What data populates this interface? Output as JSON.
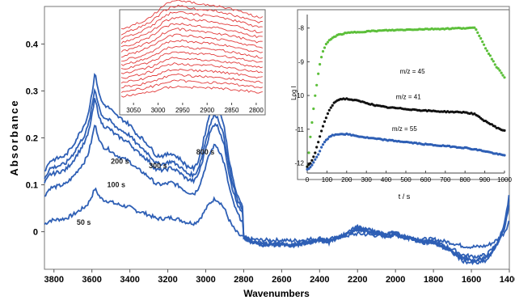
{
  "chart_data": [
    {
      "type": "line",
      "xlabel": "Wavenumbers",
      "ylabel": "Absorbance",
      "xlim": [
        3850,
        1400
      ],
      "ylim": [
        -0.08,
        0.48
      ],
      "x_reversed": true,
      "x_ticks": [
        "3800",
        "3600",
        "3400",
        "3200",
        "3000",
        "2800",
        "2600",
        "2400",
        "2200",
        "2000",
        "1800",
        "1600",
        "1400"
      ],
      "x_tick_values": [
        3800,
        3600,
        3400,
        3200,
        3000,
        2800,
        2600,
        2400,
        2200,
        2000,
        1800,
        1600,
        1400
      ],
      "y_ticks": [
        "0",
        "0.1",
        "0.2",
        "0.3",
        "0.4"
      ],
      "y_tick_values": [
        0,
        0.1,
        0.2,
        0.3,
        0.4
      ],
      "color": "#2e5fb5",
      "base_x": [
        3850,
        3820,
        3780,
        3740,
        3700,
        3670,
        3640,
        3620,
        3600,
        3585,
        3570,
        3555,
        3540,
        3520,
        3500,
        3480,
        3460,
        3440,
        3420,
        3400,
        3380,
        3360,
        3340,
        3300,
        3260,
        3220,
        3180,
        3140,
        3100,
        3060,
        3040,
        3020,
        3000,
        2980,
        2960,
        2950,
        2940,
        2930,
        2920,
        2900,
        2880,
        2860,
        2840,
        2820,
        2800,
        2780,
        2760,
        2740,
        2700,
        2650,
        2600,
        2550,
        2500,
        2450,
        2400,
        2350,
        2300,
        2250,
        2200,
        2150,
        2100,
        2050,
        2000,
        1950,
        1900,
        1850,
        1800,
        1750,
        1700,
        1650,
        1600,
        1560,
        1520,
        1490,
        1460,
        1430,
        1410,
        1400
      ],
      "base_y": [
        0.04,
        0.06,
        0.065,
        0.07,
        0.09,
        0.11,
        0.13,
        0.15,
        0.19,
        0.23,
        0.205,
        0.18,
        0.17,
        0.165,
        0.16,
        0.15,
        0.145,
        0.14,
        0.135,
        0.13,
        0.12,
        0.11,
        0.105,
        0.09,
        0.07,
        0.07,
        0.075,
        0.065,
        0.05,
        0.045,
        0.06,
        0.085,
        0.12,
        0.15,
        0.17,
        0.175,
        0.17,
        0.16,
        0.15,
        0.12,
        0.07,
        0.03,
        0.0,
        -0.02,
        -0.03,
        -0.035,
        -0.04,
        -0.042,
        -0.045,
        -0.045,
        -0.045,
        -0.048,
        -0.045,
        -0.04,
        -0.035,
        -0.04,
        -0.03,
        -0.02,
        -0.01,
        -0.015,
        -0.02,
        -0.025,
        -0.02,
        -0.03,
        -0.035,
        -0.04,
        -0.04,
        -0.05,
        -0.06,
        -0.075,
        -0.08,
        -0.08,
        -0.075,
        -0.06,
        -0.04,
        -0.01,
        0.03,
        0.06
      ],
      "series": [
        {
          "label": "50 s",
          "offset": 0.0,
          "scale": 0.4
        },
        {
          "label": "100 s",
          "offset": 0.045,
          "scale": 0.8
        },
        {
          "label": "200 s",
          "offset": 0.065,
          "scale": 0.95
        },
        {
          "label": "300 s",
          "offset": 0.075,
          "scale": 1.0
        },
        {
          "label": "800 s",
          "offset": 0.085,
          "scale": 1.1
        }
      ]
    },
    {
      "type": "line",
      "title": "",
      "x_ticks": [
        "3050",
        "3000",
        "2950",
        "2900",
        "2850",
        "2800"
      ],
      "x_tick_values": [
        3050,
        3000,
        2950,
        2900,
        2850,
        2800
      ],
      "xlim": [
        3075,
        2785
      ],
      "x_reversed": true,
      "color": "#e23b3b",
      "n_curves": 16,
      "shape_x": [
        3075,
        3050,
        3030,
        3010,
        2990,
        2975,
        2960,
        2950,
        2940,
        2925,
        2910,
        2890,
        2870,
        2850,
        2830,
        2810,
        2800,
        2785
      ],
      "shape_y": [
        0.0,
        0.15,
        0.3,
        0.5,
        0.8,
        0.95,
        1.0,
        0.98,
        0.95,
        0.9,
        0.88,
        0.85,
        0.78,
        0.7,
        0.6,
        0.5,
        0.45,
        0.4
      ]
    },
    {
      "type": "scatter",
      "xlabel": "t / s",
      "ylabel": "Log I",
      "xlim": [
        0,
        1000
      ],
      "ylim": [
        -12.3,
        -7.6
      ],
      "x_ticks": [
        "0",
        "100",
        "200",
        "300",
        "400",
        "500",
        "600",
        "700",
        "800",
        "900",
        "1000"
      ],
      "x_tick_values": [
        0,
        100,
        200,
        300,
        400,
        500,
        600,
        700,
        800,
        900,
        1000
      ],
      "y_ticks": [
        "-8",
        "-9",
        "-10",
        "-11",
        "-12"
      ],
      "y_tick_values": [
        -8,
        -9,
        -10,
        -11,
        -12
      ],
      "series": [
        {
          "name": "m/z = 45",
          "color": "#5cbf3a",
          "x": [
            0,
            10,
            20,
            30,
            40,
            50,
            60,
            70,
            80,
            90,
            100,
            120,
            140,
            160,
            180,
            200,
            250,
            300,
            400,
            500,
            600,
            700,
            800,
            850,
            860,
            880,
            900,
            930,
            960,
            1000
          ],
          "y": [
            -12.1,
            -11.6,
            -11.0,
            -10.5,
            -10.0,
            -9.6,
            -9.2,
            -8.9,
            -8.7,
            -8.55,
            -8.45,
            -8.32,
            -8.25,
            -8.2,
            -8.17,
            -8.15,
            -8.12,
            -8.1,
            -8.07,
            -8.05,
            -8.03,
            -8.02,
            -8.0,
            -8.0,
            -8.1,
            -8.3,
            -8.55,
            -8.85,
            -9.15,
            -9.45
          ]
        },
        {
          "name": "m/z = 41",
          "color": "#111111",
          "x": [
            0,
            20,
            40,
            60,
            80,
            100,
            120,
            140,
            160,
            180,
            200,
            250,
            300,
            350,
            400,
            500,
            600,
            700,
            800,
            850,
            860,
            880,
            900,
            930,
            960,
            1000
          ],
          "y": [
            -12.1,
            -12.0,
            -11.7,
            -11.3,
            -10.9,
            -10.6,
            -10.35,
            -10.2,
            -10.12,
            -10.1,
            -10.1,
            -10.15,
            -10.22,
            -10.3,
            -10.35,
            -10.4,
            -10.45,
            -10.48,
            -10.5,
            -10.55,
            -10.6,
            -10.68,
            -10.75,
            -10.85,
            -10.95,
            -11.05
          ]
        },
        {
          "name": "m/z = 55",
          "color": "#2e5fb5",
          "x": [
            0,
            20,
            40,
            60,
            80,
            100,
            120,
            150,
            180,
            200,
            250,
            300,
            400,
            500,
            600,
            700,
            800,
            850,
            900,
            950,
            1000
          ],
          "y": [
            -12.2,
            -12.1,
            -11.9,
            -11.7,
            -11.45,
            -11.3,
            -11.2,
            -11.15,
            -11.14,
            -11.15,
            -11.2,
            -11.25,
            -11.32,
            -11.38,
            -11.45,
            -11.5,
            -11.55,
            -11.6,
            -11.65,
            -11.72,
            -11.78
          ]
        }
      ]
    }
  ]
}
